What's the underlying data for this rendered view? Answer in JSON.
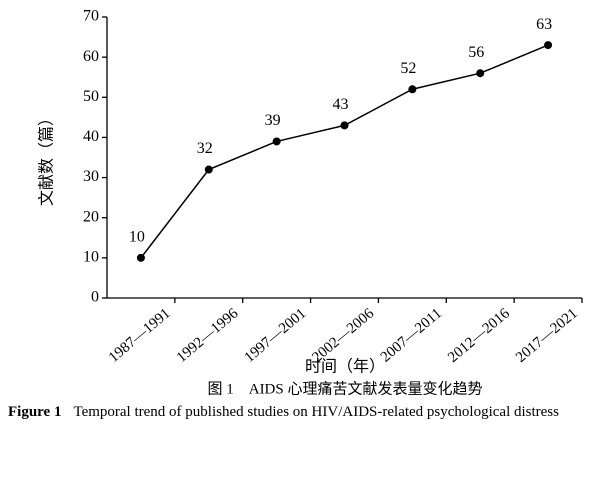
{
  "chart_data": {
    "type": "line",
    "title": "图 1　AIDS 心理痛苦文献发表量变化趋势",
    "figure_label_en": "Figure 1",
    "caption_en": "Temporal trend of published studies on HIV/AIDS-related psychological distress",
    "x_label": "时间（年）",
    "y_label": "文献数（篇）",
    "categories": [
      "1987—1991",
      "1992—1996",
      "1997—2001",
      "2002—2006",
      "2007—2011",
      "2012—2016",
      "2017—2021"
    ],
    "values": [
      10,
      32,
      39,
      43,
      52,
      56,
      63
    ],
    "color": "#000000",
    "data_labels": true,
    "ylim": [
      0,
      70
    ],
    "yticks": [
      0,
      10,
      20,
      30,
      40,
      50,
      60,
      70
    ]
  }
}
